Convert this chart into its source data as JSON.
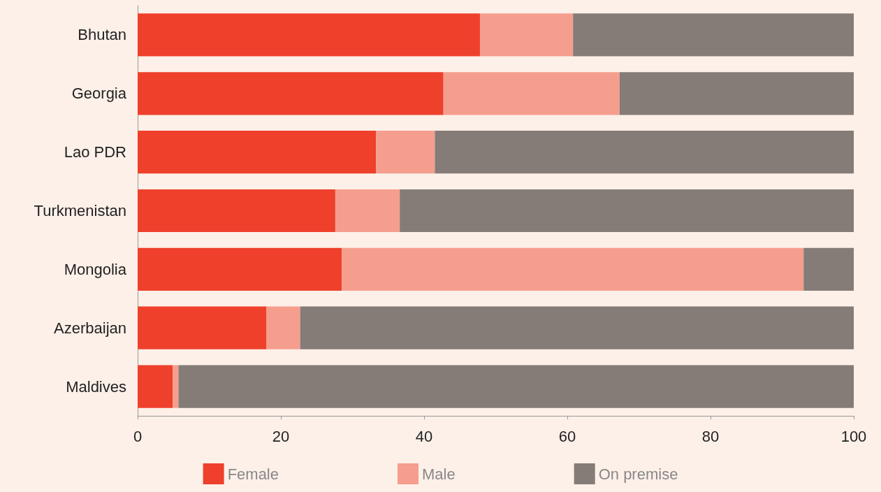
{
  "chart_data": {
    "type": "bar",
    "orientation": "horizontal",
    "stacked": true,
    "categories": [
      "Bhutan",
      "Georgia",
      "Lao PDR",
      "Turkmenistan",
      "Mongolia",
      "Azerbaijan",
      "Maldives"
    ],
    "series": [
      {
        "name": "Female",
        "color": "#ee402b",
        "values": [
          47.8,
          42.7,
          33.3,
          27.6,
          28.5,
          18.0,
          4.9
        ]
      },
      {
        "name": "Male",
        "color": "#f59e8e",
        "values": [
          13.0,
          24.6,
          8.2,
          9.0,
          64.5,
          4.7,
          0.8
        ]
      },
      {
        "name": "On premise",
        "color": "#857b77",
        "values": [
          39.2,
          32.7,
          58.5,
          63.4,
          7.0,
          77.3,
          94.3
        ]
      }
    ],
    "xlim": [
      0,
      100
    ],
    "xticks": [
      0,
      20,
      40,
      60,
      80,
      100
    ],
    "grid": false,
    "legend": "bottom"
  }
}
